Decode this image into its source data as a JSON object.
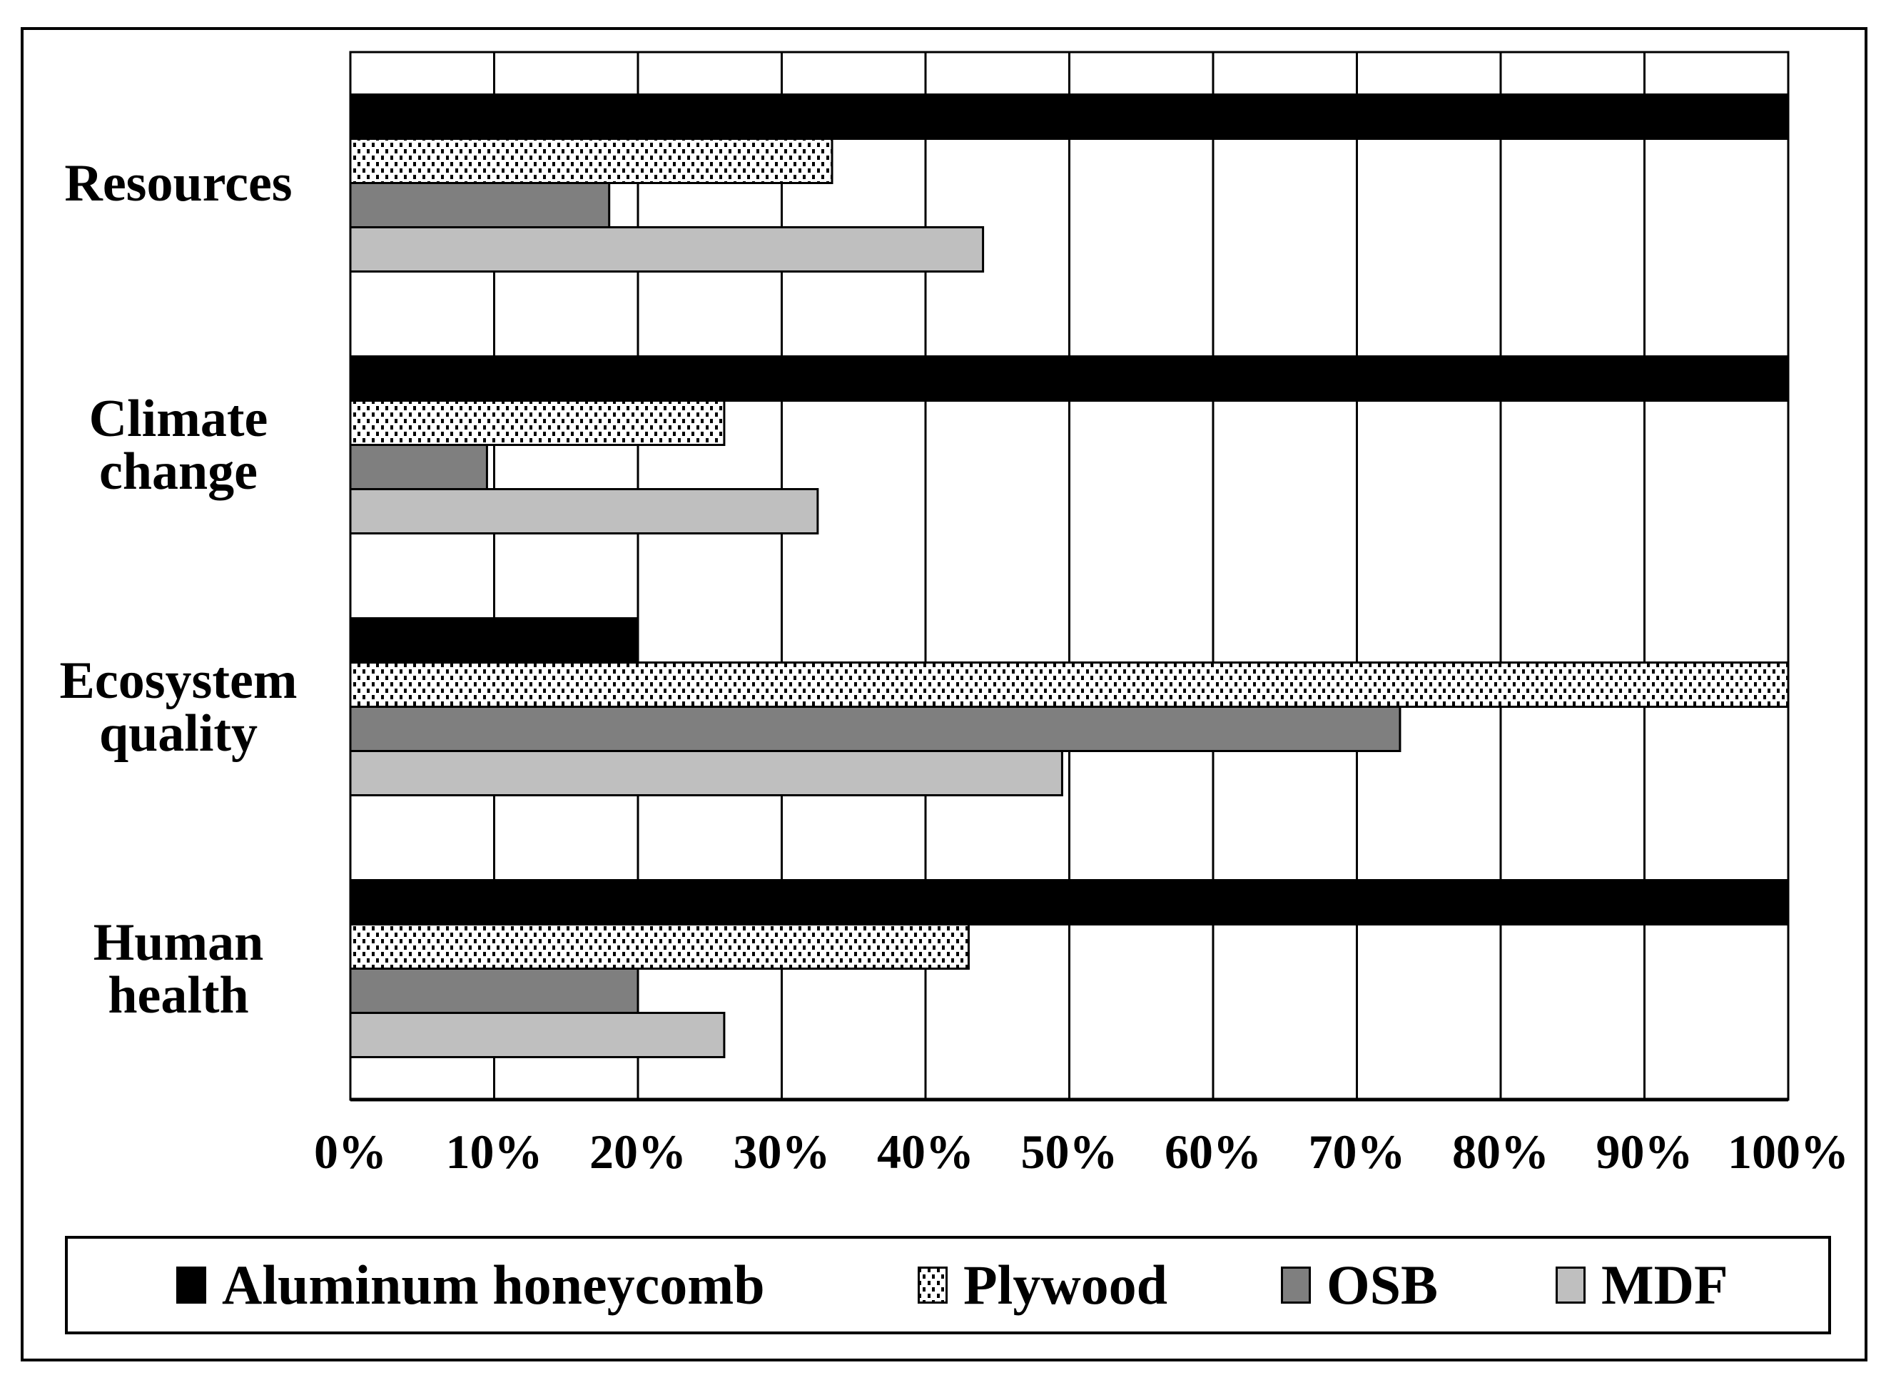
{
  "figure": {
    "background": "#ffffff",
    "border_color": "#000000"
  },
  "chart_data": {
    "type": "bar",
    "orientation": "horizontal",
    "title": "",
    "xlabel": "",
    "ylabel": "",
    "unit": "%",
    "categories": [
      "Resources",
      "Climate change",
      "Ecosystem quality",
      "Human health"
    ],
    "category_lines": [
      [
        "Resources"
      ],
      [
        "Climate",
        "change"
      ],
      [
        "Ecosystem",
        "quality"
      ],
      [
        "Human",
        "health"
      ]
    ],
    "series": [
      {
        "name": "Aluminum honeycomb",
        "slug": "aluminum-honeycomb",
        "color": "#000000",
        "pattern": "solid",
        "values": [
          100,
          100,
          20,
          100
        ]
      },
      {
        "name": "Plywood",
        "slug": "plywood",
        "color": "#000000",
        "pattern": "dots-on-white",
        "values": [
          33.5,
          26,
          100,
          43
        ]
      },
      {
        "name": "OSB",
        "slug": "osb",
        "color": "#7f7f7f",
        "pattern": "solid",
        "values": [
          18,
          9.5,
          73,
          20
        ]
      },
      {
        "name": "MDF",
        "slug": "mdf",
        "color": "#bfbfbf",
        "pattern": "solid",
        "values": [
          44,
          32.5,
          49.5,
          26
        ]
      }
    ],
    "x_axis": {
      "min": 0,
      "max": 100,
      "tick_step": 10,
      "gridlines": true,
      "ticks": [
        "0%",
        "10%",
        "20%",
        "30%",
        "40%",
        "50%",
        "60%",
        "70%",
        "80%",
        "90%",
        "100%"
      ]
    },
    "legend": {
      "position": "bottom",
      "entries": [
        "Aluminum honeycomb",
        "Plywood",
        "OSB",
        "MDF"
      ]
    }
  }
}
